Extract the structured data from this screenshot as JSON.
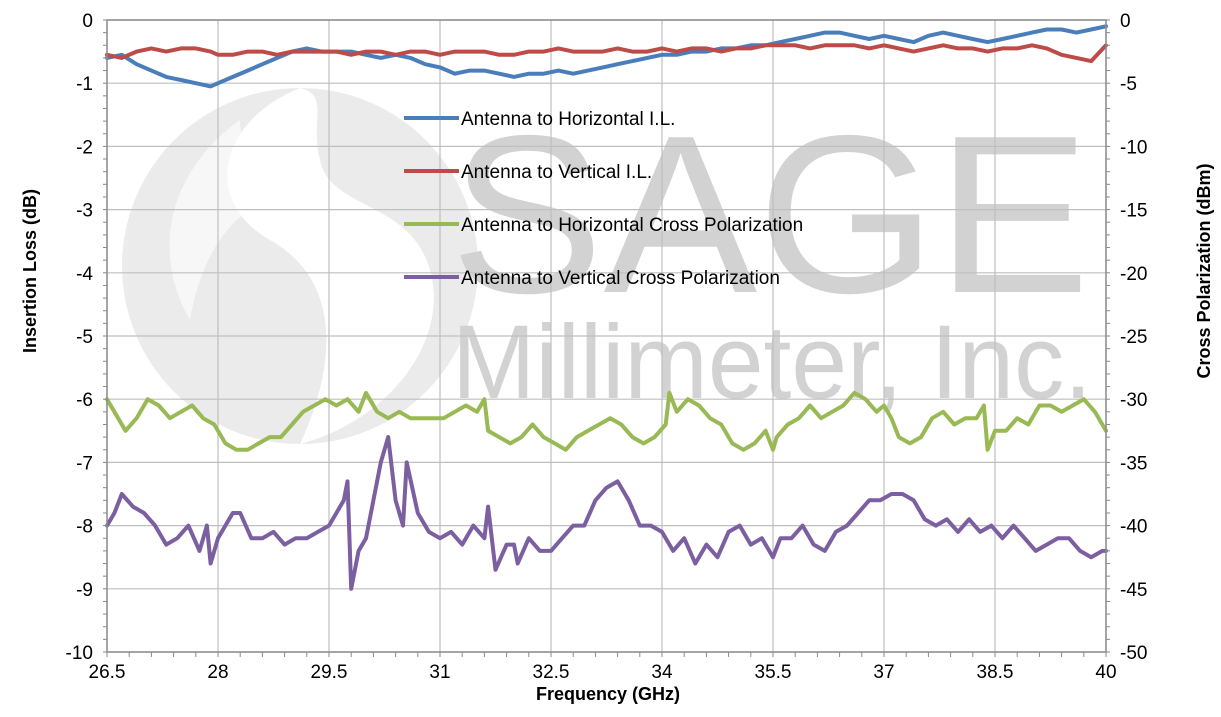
{
  "chart_data": {
    "type": "line",
    "watermark": {
      "brand": "SAGE",
      "subtitle": "Millimeter, Inc."
    },
    "xlabel": "Frequency (GHz)",
    "ylabel": "Insertion Loss (dB)",
    "y2label": "Cross Polarization (dBm)",
    "xlim": [
      26.5,
      40
    ],
    "ylim": [
      -10,
      0
    ],
    "y2lim": [
      -50,
      0
    ],
    "xticks": [
      "26.5",
      "28",
      "29.5",
      "31",
      "32.5",
      "34",
      "35.5",
      "37",
      "38.5",
      "40"
    ],
    "yticks": [
      "0",
      "-1",
      "-2",
      "-3",
      "-4",
      "-5",
      "-6",
      "-7",
      "-8",
      "-9",
      "-10"
    ],
    "y2ticks": [
      "0",
      "-5",
      "-10",
      "-15",
      "-20",
      "-25",
      "-30",
      "-35",
      "-40",
      "-45",
      "-50"
    ],
    "grid": true,
    "legend_position": "center",
    "series": [
      {
        "name": "Antenna to Horizontal I.L.",
        "axis": "left",
        "color": "#4a7ebb",
        "x": [
          26.5,
          26.7,
          26.9,
          27.1,
          27.3,
          27.5,
          27.7,
          27.9,
          28.0,
          28.2,
          28.4,
          28.6,
          28.8,
          29.0,
          29.2,
          29.4,
          29.6,
          29.8,
          30.0,
          30.2,
          30.4,
          30.6,
          30.8,
          31.0,
          31.2,
          31.4,
          31.6,
          31.8,
          32.0,
          32.2,
          32.4,
          32.6,
          32.8,
          33.0,
          33.2,
          33.4,
          33.6,
          33.8,
          34.0,
          34.2,
          34.4,
          34.6,
          34.8,
          35.0,
          35.2,
          35.4,
          35.6,
          35.8,
          36.0,
          36.2,
          36.4,
          36.6,
          36.8,
          37.0,
          37.2,
          37.4,
          37.6,
          37.8,
          38.0,
          38.2,
          38.4,
          38.6,
          38.8,
          39.0,
          39.2,
          39.4,
          39.6,
          39.8,
          40.0
        ],
        "y": [
          -0.6,
          -0.55,
          -0.7,
          -0.8,
          -0.9,
          -0.95,
          -1.0,
          -1.05,
          -1.0,
          -0.9,
          -0.8,
          -0.7,
          -0.6,
          -0.5,
          -0.45,
          -0.5,
          -0.5,
          -0.5,
          -0.55,
          -0.6,
          -0.55,
          -0.6,
          -0.7,
          -0.75,
          -0.85,
          -0.8,
          -0.8,
          -0.85,
          -0.9,
          -0.85,
          -0.85,
          -0.8,
          -0.85,
          -0.8,
          -0.75,
          -0.7,
          -0.65,
          -0.6,
          -0.55,
          -0.55,
          -0.5,
          -0.5,
          -0.45,
          -0.45,
          -0.4,
          -0.4,
          -0.35,
          -0.3,
          -0.25,
          -0.2,
          -0.2,
          -0.25,
          -0.3,
          -0.25,
          -0.3,
          -0.35,
          -0.25,
          -0.2,
          -0.25,
          -0.3,
          -0.35,
          -0.3,
          -0.25,
          -0.2,
          -0.15,
          -0.15,
          -0.2,
          -0.15,
          -0.1
        ]
      },
      {
        "name": "Antenna to Vertical I.L.",
        "axis": "left",
        "color": "#be4b48",
        "x": [
          26.5,
          26.7,
          26.9,
          27.1,
          27.3,
          27.5,
          27.7,
          27.9,
          28.0,
          28.2,
          28.4,
          28.6,
          28.8,
          29.0,
          29.2,
          29.4,
          29.6,
          29.8,
          30.0,
          30.2,
          30.4,
          30.6,
          30.8,
          31.0,
          31.2,
          31.4,
          31.6,
          31.8,
          32.0,
          32.2,
          32.4,
          32.6,
          32.8,
          33.0,
          33.2,
          33.4,
          33.6,
          33.8,
          34.0,
          34.2,
          34.4,
          34.6,
          34.8,
          35.0,
          35.2,
          35.4,
          35.6,
          35.8,
          36.0,
          36.2,
          36.4,
          36.6,
          36.8,
          37.0,
          37.2,
          37.4,
          37.6,
          37.8,
          38.0,
          38.2,
          38.4,
          38.6,
          38.8,
          39.0,
          39.2,
          39.4,
          39.6,
          39.8,
          40.0
        ],
        "y": [
          -0.55,
          -0.6,
          -0.5,
          -0.45,
          -0.5,
          -0.45,
          -0.45,
          -0.5,
          -0.55,
          -0.55,
          -0.5,
          -0.5,
          -0.55,
          -0.5,
          -0.5,
          -0.5,
          -0.5,
          -0.55,
          -0.5,
          -0.5,
          -0.55,
          -0.5,
          -0.5,
          -0.55,
          -0.5,
          -0.5,
          -0.5,
          -0.55,
          -0.55,
          -0.5,
          -0.5,
          -0.45,
          -0.5,
          -0.5,
          -0.5,
          -0.45,
          -0.5,
          -0.5,
          -0.45,
          -0.5,
          -0.45,
          -0.45,
          -0.5,
          -0.45,
          -0.45,
          -0.4,
          -0.4,
          -0.4,
          -0.45,
          -0.4,
          -0.4,
          -0.4,
          -0.45,
          -0.4,
          -0.45,
          -0.5,
          -0.45,
          -0.4,
          -0.45,
          -0.45,
          -0.5,
          -0.45,
          -0.45,
          -0.4,
          -0.45,
          -0.55,
          -0.6,
          -0.65,
          -0.4
        ]
      },
      {
        "name": "Antenna to Horizontal Cross Polarization",
        "axis": "right",
        "color": "#98b954",
        "x": [
          26.5,
          26.6,
          26.75,
          26.9,
          27.05,
          27.2,
          27.35,
          27.5,
          27.65,
          27.8,
          27.95,
          28.1,
          28.25,
          28.4,
          28.55,
          28.7,
          28.85,
          29.0,
          29.15,
          29.3,
          29.45,
          29.6,
          29.75,
          29.9,
          30.0,
          30.05,
          30.15,
          30.3,
          30.45,
          30.6,
          30.75,
          30.9,
          31.05,
          31.2,
          31.35,
          31.5,
          31.6,
          31.65,
          31.8,
          31.95,
          32.1,
          32.25,
          32.4,
          32.55,
          32.7,
          32.85,
          33.0,
          33.15,
          33.3,
          33.45,
          33.6,
          33.75,
          33.9,
          34.05,
          34.1,
          34.2,
          34.35,
          34.5,
          34.65,
          34.8,
          34.95,
          35.1,
          35.25,
          35.4,
          35.5,
          35.55,
          35.7,
          35.85,
          36.0,
          36.15,
          36.3,
          36.45,
          36.6,
          36.75,
          36.9,
          37.0,
          37.1,
          37.2,
          37.35,
          37.5,
          37.65,
          37.8,
          37.95,
          38.1,
          38.25,
          38.35,
          38.4,
          38.5,
          38.65,
          38.8,
          38.95,
          39.1,
          39.25,
          39.4,
          39.55,
          39.7,
          39.85,
          40.0
        ],
        "y": [
          -30,
          -31,
          -32.5,
          -31.5,
          -30,
          -30.5,
          -31.5,
          -31,
          -30.5,
          -31.5,
          -32,
          -33.5,
          -34,
          -34,
          -33.5,
          -33,
          -33,
          -32,
          -31,
          -30.5,
          -30,
          -30.5,
          -30,
          -31,
          -29.5,
          -30,
          -31,
          -31.5,
          -31,
          -31.5,
          -31.5,
          -31.5,
          -31.5,
          -31,
          -30.5,
          -31,
          -30,
          -32.5,
          -33,
          -33.5,
          -33,
          -32,
          -33,
          -33.5,
          -34,
          -33,
          -32.5,
          -32,
          -31.5,
          -32,
          -33,
          -33.5,
          -33,
          -32,
          -29.5,
          -31,
          -30,
          -30.5,
          -31.5,
          -32,
          -33.5,
          -34,
          -33.5,
          -32.5,
          -34,
          -33,
          -32,
          -31.5,
          -30.5,
          -31.5,
          -31,
          -30.5,
          -29.5,
          -30,
          -31,
          -30.5,
          -31.5,
          -33,
          -33.5,
          -33,
          -31.5,
          -31,
          -32,
          -31.5,
          -31.5,
          -30.5,
          -34,
          -32.5,
          -32.5,
          -31.5,
          -32,
          -30.5,
          -30.5,
          -31,
          -30.5,
          -30,
          -31,
          -32.5
        ]
      },
      {
        "name": "Antenna to Vertical Cross Polarization",
        "axis": "right",
        "color": "#7b5fa0",
        "x": [
          26.5,
          26.6,
          26.7,
          26.85,
          27.0,
          27.15,
          27.3,
          27.45,
          27.6,
          27.75,
          27.85,
          27.9,
          28.0,
          28.1,
          28.2,
          28.3,
          28.45,
          28.6,
          28.75,
          28.9,
          29.05,
          29.2,
          29.35,
          29.5,
          29.6,
          29.7,
          29.75,
          29.8,
          29.9,
          30.0,
          30.1,
          30.2,
          30.3,
          30.4,
          30.5,
          30.55,
          30.7,
          30.85,
          31.0,
          31.15,
          31.3,
          31.45,
          31.6,
          31.65,
          31.75,
          31.9,
          32.0,
          32.05,
          32.2,
          32.35,
          32.5,
          32.65,
          32.8,
          32.95,
          33.1,
          33.25,
          33.4,
          33.55,
          33.7,
          33.85,
          34.0,
          34.15,
          34.3,
          34.45,
          34.6,
          34.75,
          34.9,
          35.05,
          35.2,
          35.35,
          35.5,
          35.6,
          35.75,
          35.9,
          36.05,
          36.2,
          36.35,
          36.5,
          36.65,
          36.8,
          36.95,
          37.1,
          37.25,
          37.4,
          37.55,
          37.7,
          37.85,
          38.0,
          38.15,
          38.3,
          38.45,
          38.6,
          38.75,
          38.9,
          39.05,
          39.2,
          39.35,
          39.5,
          39.65,
          39.8,
          39.95,
          40.0
        ],
        "y": [
          -40,
          -39,
          -37.5,
          -38.5,
          -39,
          -40,
          -41.5,
          -41,
          -40,
          -42,
          -40,
          -43,
          -41,
          -40,
          -39,
          -39,
          -41,
          -41,
          -40.5,
          -41.5,
          -41,
          -41,
          -40.5,
          -40,
          -39,
          -38,
          -36.5,
          -45,
          -42,
          -41,
          -38,
          -35,
          -33,
          -38,
          -40,
          -35,
          -39,
          -40.5,
          -41,
          -40.5,
          -41.5,
          -40,
          -41,
          -38.5,
          -43.5,
          -41.5,
          -41.5,
          -43,
          -41,
          -42,
          -42,
          -41,
          -40,
          -40,
          -38,
          -37,
          -36.5,
          -38,
          -40,
          -40,
          -40.5,
          -42,
          -41,
          -43,
          -41.5,
          -42.5,
          -40.5,
          -40,
          -41.5,
          -41,
          -42.5,
          -41,
          -41,
          -40,
          -41.5,
          -42,
          -40.5,
          -40,
          -39,
          -38,
          -38,
          -37.5,
          -37.5,
          -38,
          -39.5,
          -40,
          -39.5,
          -40.5,
          -39.5,
          -40.5,
          -40,
          -41,
          -40,
          -41,
          -42,
          -41.5,
          -41,
          -41,
          -42,
          -42.5,
          -42,
          -42
        ]
      }
    ]
  }
}
